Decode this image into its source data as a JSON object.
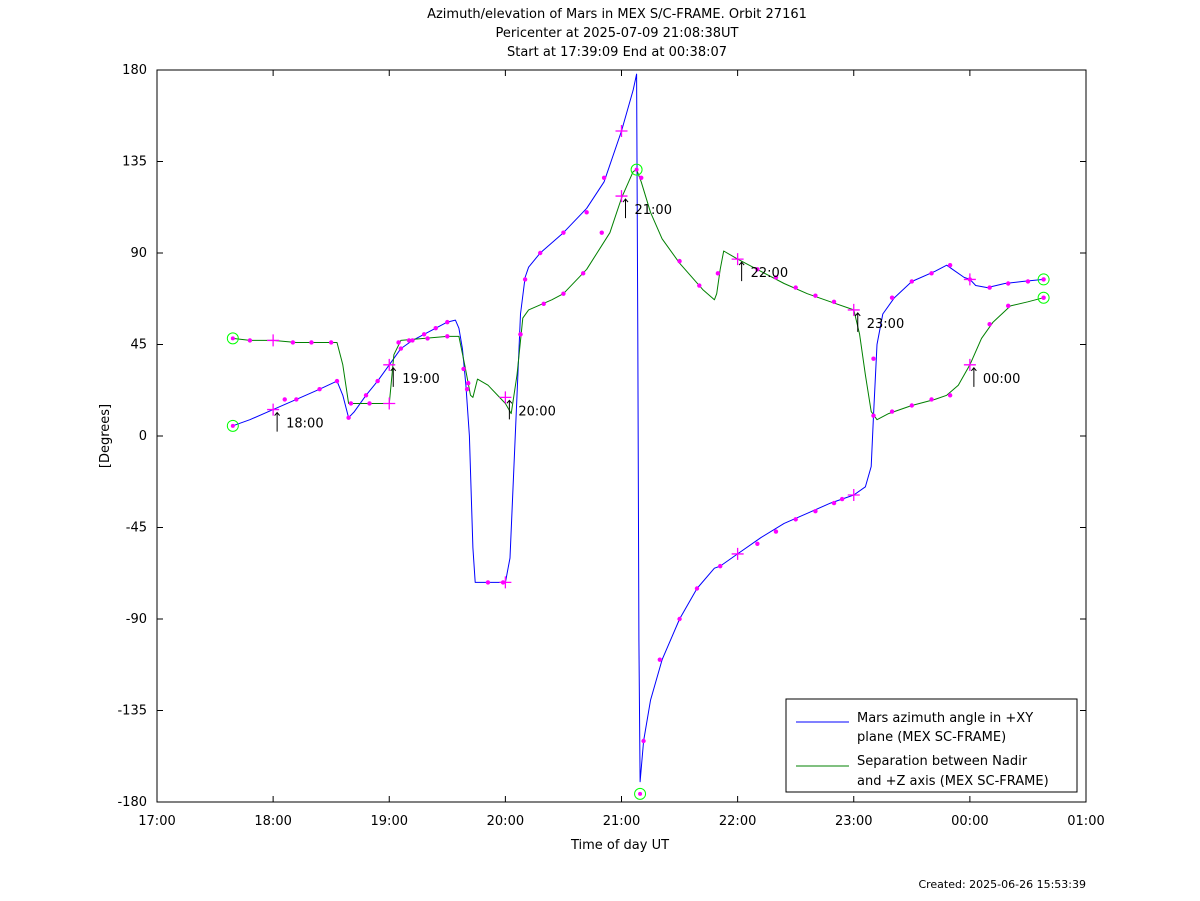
{
  "chart_data": {
    "type": "line",
    "title_lines": [
      "Azimuth/elevation of Mars in MEX S/C-FRAME.  Orbit 27161",
      "Pericenter at 2025-07-09 21:08:38UT",
      "Start at 17:39:09 End at 00:38:07"
    ],
    "xlabel": "Time of day UT",
    "ylabel": "[Degrees]",
    "xlim": [
      17.0,
      25.0
    ],
    "ylim": [
      -180,
      180
    ],
    "x_ticks": [
      17,
      18,
      19,
      20,
      21,
      22,
      23,
      24,
      25
    ],
    "x_tick_labels": [
      "17:00",
      "18:00",
      "19:00",
      "20:00",
      "21:00",
      "22:00",
      "23:00",
      "00:00",
      "01:00"
    ],
    "y_ticks": [
      180,
      135,
      90,
      45,
      0,
      -45,
      -90,
      -135,
      -180
    ],
    "y_tick_labels": [
      "180",
      "135",
      "90",
      "45",
      "0",
      "-45",
      "-90",
      "-135",
      "-180"
    ],
    "legend_position": "bottom-right",
    "created": "Created: 2025-06-26 15:53:39",
    "series": [
      {
        "name": "Mars azimuth angle in +XY plane (MEX SC-FRAME)",
        "legend_lines": [
          "Mars azimuth angle in +XY",
          "plane (MEX SC-FRAME)"
        ],
        "color": "#0000ff",
        "points": [
          [
            17.653,
            5
          ],
          [
            17.8,
            8
          ],
          [
            18.0,
            13
          ],
          [
            18.2,
            18
          ],
          [
            18.4,
            23
          ],
          [
            18.55,
            27
          ],
          [
            18.6,
            20
          ],
          [
            18.65,
            9
          ],
          [
            18.7,
            12
          ],
          [
            18.8,
            20
          ],
          [
            18.9,
            27
          ],
          [
            19.0,
            35
          ],
          [
            19.1,
            43
          ],
          [
            19.2,
            47
          ],
          [
            19.3,
            50
          ],
          [
            19.4,
            53
          ],
          [
            19.5,
            56
          ],
          [
            19.57,
            57
          ],
          [
            19.6,
            53
          ],
          [
            19.63,
            43
          ],
          [
            19.66,
            25
          ],
          [
            19.69,
            0
          ],
          [
            19.72,
            -55
          ],
          [
            19.74,
            -72
          ],
          [
            19.77,
            -72
          ],
          [
            19.85,
            -72
          ],
          [
            19.95,
            -72
          ],
          [
            20.0,
            -72
          ],
          [
            20.04,
            -60
          ],
          [
            20.07,
            -20
          ],
          [
            20.1,
            20
          ],
          [
            20.13,
            60
          ],
          [
            20.17,
            78
          ],
          [
            20.2,
            83
          ],
          [
            20.3,
            90
          ],
          [
            20.5,
            100
          ],
          [
            20.7,
            112
          ],
          [
            20.85,
            125
          ],
          [
            21.0,
            150
          ],
          [
            21.1,
            170
          ],
          [
            21.13,
            178
          ],
          [
            21.14,
            50
          ],
          [
            21.15,
            -100
          ],
          [
            21.16,
            -170
          ],
          [
            21.19,
            -150
          ],
          [
            21.25,
            -130
          ],
          [
            21.35,
            -110
          ],
          [
            21.5,
            -90
          ],
          [
            21.65,
            -75
          ],
          [
            21.8,
            -65
          ],
          [
            21.85,
            -64
          ],
          [
            22.0,
            -58
          ],
          [
            22.2,
            -50
          ],
          [
            22.4,
            -43
          ],
          [
            22.6,
            -38
          ],
          [
            22.8,
            -33
          ],
          [
            23.0,
            -29
          ],
          [
            23.1,
            -25
          ],
          [
            23.15,
            -15
          ],
          [
            23.17,
            10
          ],
          [
            23.2,
            45
          ],
          [
            23.25,
            60
          ],
          [
            23.35,
            68
          ],
          [
            23.5,
            76
          ],
          [
            23.7,
            81
          ],
          [
            23.8,
            84
          ],
          [
            23.85,
            82
          ],
          [
            23.95,
            78
          ],
          [
            24.0,
            77
          ],
          [
            24.05,
            74
          ],
          [
            24.15,
            73
          ],
          [
            24.3,
            75
          ],
          [
            24.45,
            76
          ],
          [
            24.635,
            77
          ]
        ],
        "markers": [
          [
            18.1,
            18
          ],
          [
            18.2,
            18
          ],
          [
            18.4,
            23
          ],
          [
            18.55,
            27
          ],
          [
            18.65,
            9
          ],
          [
            18.8,
            20
          ],
          [
            18.9,
            27
          ],
          [
            19.1,
            43
          ],
          [
            19.2,
            47
          ],
          [
            19.3,
            50
          ],
          [
            19.4,
            53
          ],
          [
            19.5,
            56
          ],
          [
            19.64,
            33
          ],
          [
            19.68,
            26
          ],
          [
            19.85,
            -72
          ],
          [
            19.98,
            -72
          ],
          [
            20.13,
            50
          ],
          [
            20.17,
            77
          ],
          [
            20.3,
            90
          ],
          [
            20.5,
            100
          ],
          [
            20.7,
            110
          ],
          [
            20.85,
            127
          ],
          [
            21.19,
            -150
          ],
          [
            21.33,
            -110
          ],
          [
            21.5,
            -90
          ],
          [
            21.65,
            -75
          ],
          [
            21.85,
            -64
          ],
          [
            22.17,
            -53
          ],
          [
            22.33,
            -47
          ],
          [
            22.5,
            -41
          ],
          [
            22.67,
            -37
          ],
          [
            22.83,
            -33
          ],
          [
            22.9,
            -31
          ],
          [
            23.17,
            38
          ],
          [
            23.33,
            68
          ],
          [
            23.5,
            76
          ],
          [
            23.67,
            80
          ],
          [
            23.83,
            84
          ],
          [
            24.0,
            77
          ],
          [
            24.17,
            73
          ],
          [
            24.33,
            75
          ],
          [
            24.5,
            76
          ],
          [
            24.635,
            77
          ]
        ],
        "hour_marks": [
          [
            18.0,
            13
          ],
          [
            19.0,
            35
          ],
          [
            20.0,
            -72
          ],
          [
            21.0,
            150
          ],
          [
            22.0,
            -58
          ],
          [
            23.0,
            -29
          ],
          [
            24.0,
            77
          ]
        ],
        "hour_labels": [
          "18:00",
          "19:00",
          "20:00",
          "21:00",
          "22:00",
          "23:00",
          "00:00"
        ],
        "hour_label_series": [
          0,
          0,
          1,
          1,
          1,
          1,
          1
        ],
        "end_circles": [
          [
            17.653,
            5
          ],
          [
            21.16,
            -176
          ],
          [
            24.635,
            77
          ]
        ]
      },
      {
        "name": "Separation between Nadir and +Z axis (MEX SC-FRAME)",
        "legend_lines": [
          "Separation between Nadir",
          "and +Z axis (MEX SC-FRAME)"
        ],
        "color": "#008000",
        "points": [
          [
            17.653,
            48
          ],
          [
            17.8,
            47
          ],
          [
            18.0,
            47
          ],
          [
            18.2,
            46
          ],
          [
            18.4,
            46
          ],
          [
            18.55,
            46
          ],
          [
            18.6,
            35
          ],
          [
            18.65,
            16
          ],
          [
            18.8,
            16
          ],
          [
            19.0,
            16
          ],
          [
            19.04,
            40
          ],
          [
            19.1,
            47
          ],
          [
            19.3,
            48
          ],
          [
            19.5,
            49
          ],
          [
            19.6,
            49
          ],
          [
            19.65,
            35
          ],
          [
            19.7,
            20
          ],
          [
            19.72,
            19
          ],
          [
            19.76,
            28
          ],
          [
            19.85,
            25
          ],
          [
            19.95,
            19
          ],
          [
            20.0,
            16
          ],
          [
            20.05,
            11
          ],
          [
            20.1,
            30
          ],
          [
            20.15,
            58
          ],
          [
            20.2,
            62
          ],
          [
            20.4,
            67
          ],
          [
            20.5,
            70
          ],
          [
            20.7,
            82
          ],
          [
            20.9,
            100
          ],
          [
            21.0,
            117
          ],
          [
            21.1,
            130
          ],
          [
            21.13,
            131
          ],
          [
            21.17,
            125
          ],
          [
            21.25,
            110
          ],
          [
            21.35,
            97
          ],
          [
            21.5,
            85
          ],
          [
            21.7,
            72
          ],
          [
            21.8,
            67
          ],
          [
            21.82,
            70
          ],
          [
            21.85,
            82
          ],
          [
            21.88,
            91
          ],
          [
            22.0,
            87
          ],
          [
            22.2,
            81
          ],
          [
            22.4,
            75
          ],
          [
            22.6,
            70
          ],
          [
            22.8,
            66
          ],
          [
            23.0,
            62
          ],
          [
            23.05,
            50
          ],
          [
            23.1,
            30
          ],
          [
            23.15,
            12
          ],
          [
            23.2,
            8
          ],
          [
            23.3,
            11
          ],
          [
            23.5,
            15
          ],
          [
            23.7,
            18
          ],
          [
            23.8,
            20
          ],
          [
            23.9,
            25
          ],
          [
            24.0,
            35
          ],
          [
            24.1,
            48
          ],
          [
            24.2,
            56
          ],
          [
            24.35,
            64
          ],
          [
            24.5,
            66
          ],
          [
            24.635,
            68
          ]
        ],
        "markers": [
          [
            17.8,
            47
          ],
          [
            18.17,
            46
          ],
          [
            18.33,
            46
          ],
          [
            18.5,
            46
          ],
          [
            18.67,
            16
          ],
          [
            18.83,
            16
          ],
          [
            19.08,
            46
          ],
          [
            19.17,
            47
          ],
          [
            19.33,
            48
          ],
          [
            19.5,
            49
          ],
          [
            19.67,
            23
          ],
          [
            20.13,
            50
          ],
          [
            20.33,
            65
          ],
          [
            20.5,
            70
          ],
          [
            20.67,
            80
          ],
          [
            20.83,
            100
          ],
          [
            21.17,
            127
          ],
          [
            21.5,
            86
          ],
          [
            21.67,
            74
          ],
          [
            21.83,
            80
          ],
          [
            22.17,
            82
          ],
          [
            22.33,
            78
          ],
          [
            22.5,
            73
          ],
          [
            22.67,
            69
          ],
          [
            22.83,
            66
          ],
          [
            23.17,
            10
          ],
          [
            23.33,
            12
          ],
          [
            23.5,
            15
          ],
          [
            23.67,
            18
          ],
          [
            23.83,
            20
          ],
          [
            24.17,
            55
          ],
          [
            24.33,
            64
          ],
          [
            24.635,
            68
          ]
        ],
        "hour_marks": [
          [
            18.0,
            47
          ],
          [
            19.0,
            16
          ],
          [
            20.0,
            19
          ],
          [
            21.0,
            118
          ],
          [
            22.0,
            87
          ],
          [
            23.0,
            62
          ],
          [
            24.0,
            35
          ]
        ],
        "end_circles": [
          [
            17.653,
            48
          ],
          [
            21.13,
            131
          ],
          [
            24.635,
            68
          ]
        ]
      }
    ]
  }
}
